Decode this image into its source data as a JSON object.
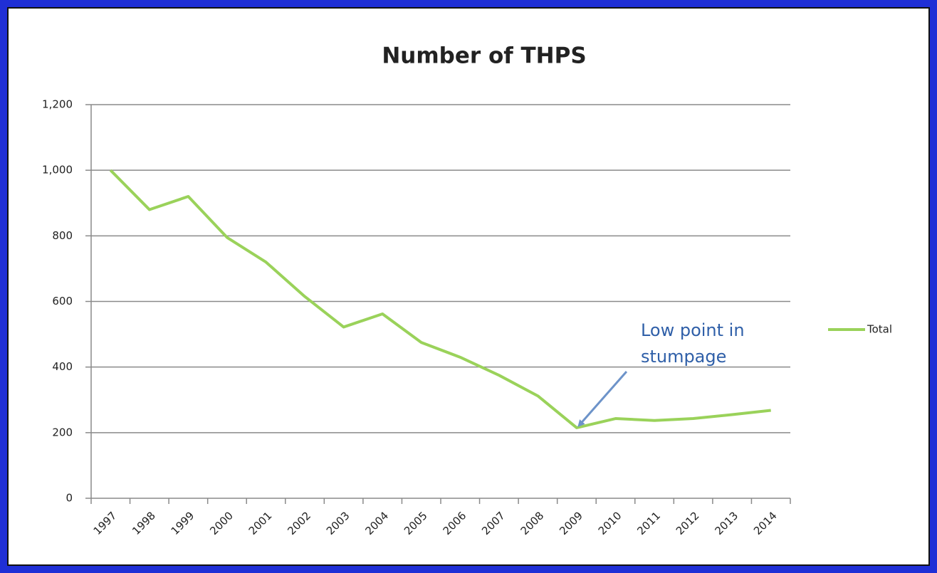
{
  "chart_data": {
    "type": "line",
    "title": "Number of THPS",
    "categories": [
      "1997",
      "1998",
      "1999",
      "2000",
      "2001",
      "2002",
      "2003",
      "2004",
      "2005",
      "2006",
      "2007",
      "2008",
      "2009",
      "2010",
      "2011",
      "2012",
      "2013",
      "2014"
    ],
    "series": [
      {
        "name": "Total",
        "color": "#9ad25a",
        "values": [
          1000,
          880,
          920,
          795,
          720,
          615,
          522,
          562,
          475,
          430,
          375,
          312,
          215,
          243,
          237,
          243,
          255,
          268
        ]
      }
    ],
    "ylim": [
      0,
      1200
    ],
    "yticks": [
      0,
      200,
      400,
      600,
      800,
      {
        "value": 1000,
        "label": "1,000"
      },
      {
        "value": 1200,
        "label": "1,200"
      }
    ],
    "grid": true,
    "legend": "right",
    "annotation": {
      "text": [
        "Low point in",
        "stumpage"
      ],
      "color": "#2f5fa8",
      "category_index": 12
    }
  }
}
